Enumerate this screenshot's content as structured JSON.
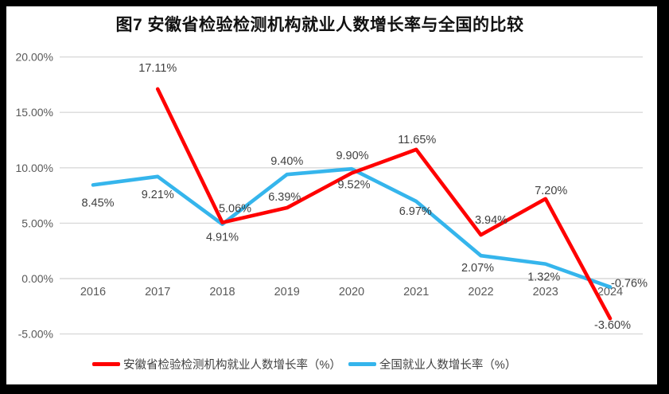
{
  "page": {
    "background_color": "#ffffff",
    "frame_color": "#000000"
  },
  "chart_data": {
    "type": "line",
    "title": "图7 安徽省检验检测机构就业人数增长率与全国的比较",
    "categories": [
      "2016",
      "2017",
      "2018",
      "2019",
      "2020",
      "2021",
      "2022",
      "2023",
      "2024"
    ],
    "y_axis": {
      "tick_labels": [
        "20.00%",
        "15.00%",
        "10.00%",
        "5.00%",
        "0.00%",
        "-5.00%"
      ],
      "tick_values": [
        20,
        15,
        10,
        5,
        0,
        -5
      ],
      "min": -5,
      "max": 20
    },
    "grid": true,
    "legend_position": "bottom",
    "colors": {
      "grid": "#d9d9d9",
      "axis_label": "#595959",
      "data_label": "#3f3f3f"
    },
    "series": [
      {
        "name": "安徽省检验检测机构就业人数增长率（%）",
        "color": "#ff0000",
        "values": [
          null,
          17.11,
          5.06,
          6.39,
          9.52,
          11.65,
          3.94,
          7.2,
          -3.6
        ],
        "labels": [
          "",
          "17.11%",
          "5.06%",
          "6.39%",
          "9.52%",
          "11.65%",
          "3.94%",
          "7.20%",
          "-3.60%"
        ]
      },
      {
        "name": "全国就业人数增长率（%）",
        "color": "#35b5ec",
        "values": [
          8.45,
          9.21,
          4.91,
          9.4,
          9.9,
          6.97,
          2.07,
          1.32,
          -0.76
        ],
        "labels": [
          "8.45%",
          "9.21%",
          "4.91%",
          "9.40%",
          "9.90%",
          "6.97%",
          "2.07%",
          "1.32%",
          "-0.76%"
        ]
      }
    ]
  }
}
